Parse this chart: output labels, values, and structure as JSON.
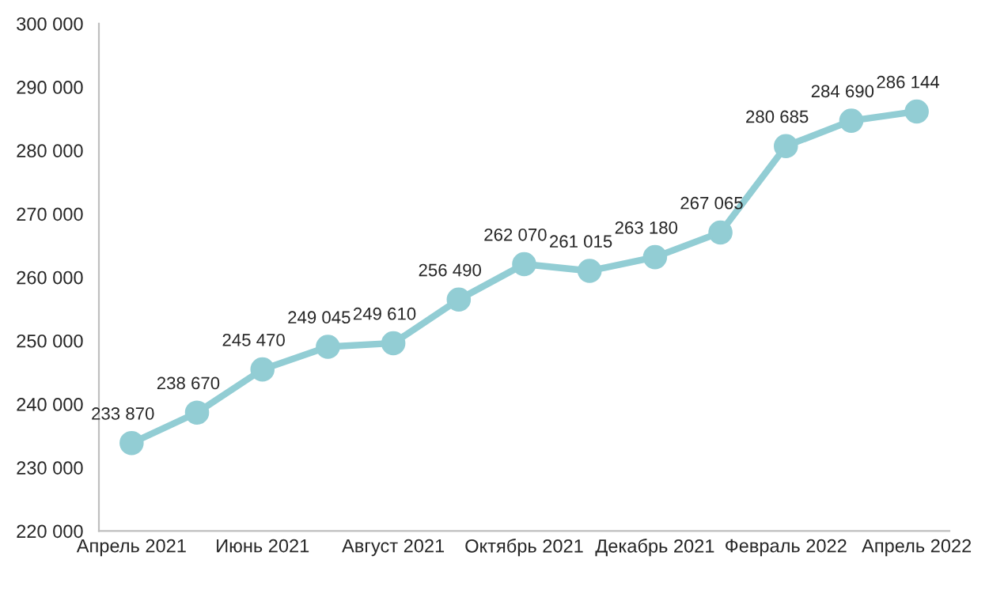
{
  "chart_data": {
    "type": "line",
    "categories": [
      "Апрель 2021",
      null,
      "Июнь 2021",
      null,
      "Август 2021",
      null,
      "Октябрь 2021",
      null,
      "Декабрь 2021",
      null,
      "Февраль 2022",
      null,
      "Апрель 2022"
    ],
    "series": [
      {
        "color": "#92cdd4",
        "values": [
          233870,
          238670,
          245470,
          249045,
          249610,
          256490,
          262070,
          261015,
          263180,
          267065,
          280685,
          284690,
          286144
        ],
        "value_labels": [
          "233 870",
          "238 670",
          "245 470",
          "249 045",
          "249 610",
          "256 490",
          "262 070",
          "261 015",
          "263 180",
          "267 065",
          "280 685",
          "284 690",
          "286 144"
        ]
      }
    ],
    "ylim": [
      220000,
      300000
    ],
    "yticks": [
      {
        "value": 220000,
        "label": "220 000"
      },
      {
        "value": 230000,
        "label": "230 000"
      },
      {
        "value": 240000,
        "label": "240 000"
      },
      {
        "value": 250000,
        "label": "250 000"
      },
      {
        "value": 260000,
        "label": "260 000"
      },
      {
        "value": 270000,
        "label": "270 000"
      },
      {
        "value": 280000,
        "label": "280 000"
      },
      {
        "value": 290000,
        "label": "290 000"
      },
      {
        "value": 300000,
        "label": "300 000"
      }
    ],
    "grid": false,
    "marker": "circle",
    "line_style": "solid"
  }
}
